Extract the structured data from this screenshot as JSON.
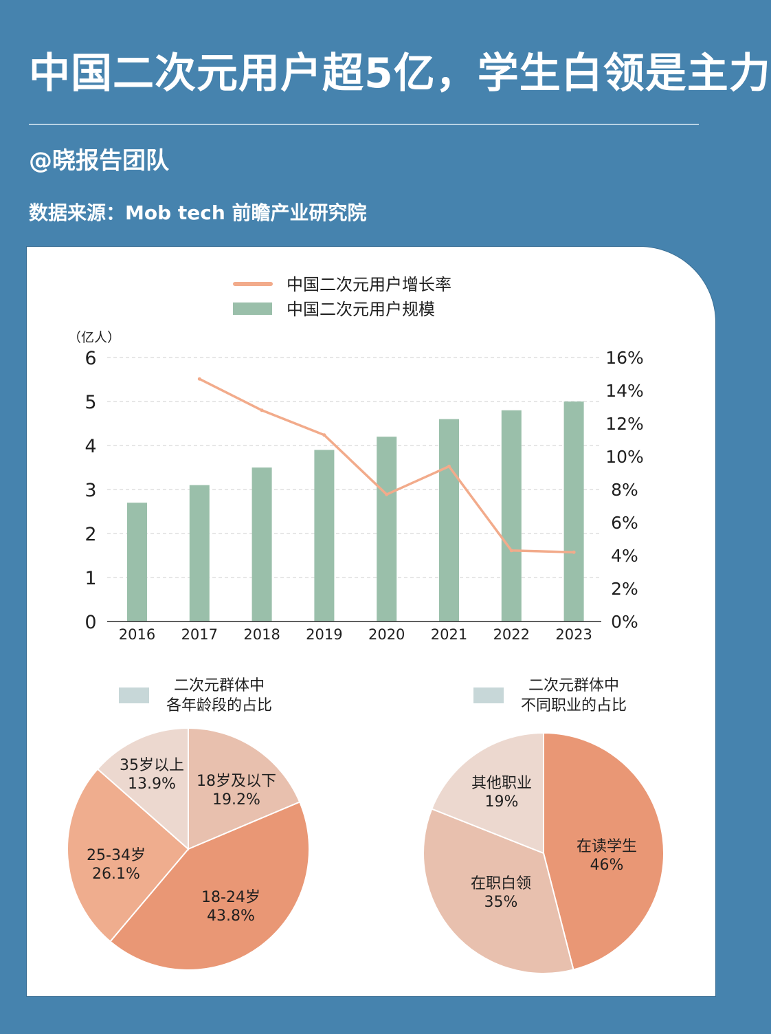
{
  "header": {
    "title": "中国二次元用户超5亿，学生白领是主力",
    "author": "@晓报告团队",
    "source": "数据来源：Mob tech 前瞻产业研究院"
  },
  "colors": {
    "background": "#4683ae",
    "bar": "#9abfaa",
    "line": "#f2ab8b",
    "pie_dark": "#e99775",
    "pie_mid": "#efad8e",
    "pie_light": "#e8c0ae",
    "pie_lightest": "#ecd8cf",
    "legend_swatch": "#c7d7d8"
  },
  "chart_data": [
    {
      "type": "bar",
      "categories": [
        "2016",
        "2017",
        "2018",
        "2019",
        "2020",
        "2021",
        "2022",
        "2023"
      ],
      "y_unit": "（亿人）",
      "ylim": [
        0,
        6
      ],
      "y_ticks": [
        "0",
        "1",
        "2",
        "3",
        "4",
        "5",
        "6"
      ],
      "y2lim": [
        0,
        16
      ],
      "y2_ticks": [
        "0%",
        "2%",
        "4%",
        "6%",
        "8%",
        "10%",
        "12%",
        "14%",
        "16%"
      ],
      "grid": true,
      "legend_position": "top",
      "series": [
        {
          "name": "中国二次元用户增长率",
          "type": "line",
          "axis": "right",
          "x": [
            "2017",
            "2018",
            "2019",
            "2020",
            "2021",
            "2022",
            "2023"
          ],
          "values": [
            14.7,
            12.8,
            11.3,
            7.7,
            9.4,
            4.3,
            4.2
          ]
        },
        {
          "name": "中国二次元用户规模",
          "type": "bar",
          "axis": "left",
          "values": [
            2.7,
            3.1,
            3.5,
            3.9,
            4.2,
            4.6,
            4.8,
            5.0
          ]
        }
      ]
    },
    {
      "type": "pie",
      "legend": "二次元群体中各年龄段的占比",
      "legend_lines": [
        "二次元群体中",
        "各年龄段的占比"
      ],
      "slices": [
        {
          "label": "18岁及以下",
          "value_label": "19.2%",
          "value": 19.2
        },
        {
          "label": "18-24岁",
          "value_label": "43.8%",
          "value": 43.8
        },
        {
          "label": "25-34岁",
          "value_label": "26.1%",
          "value": 26.1
        },
        {
          "label": "35岁以上",
          "value_label": "13.9%",
          "value": 13.9
        }
      ]
    },
    {
      "type": "pie",
      "legend": "二次元群体中不同职业的占比",
      "legend_lines": [
        "二次元群体中",
        "不同职业的占比"
      ],
      "slices": [
        {
          "label": "在读学生",
          "value_label": "46%",
          "value": 46
        },
        {
          "label": "在职白领",
          "value_label": "35%",
          "value": 35
        },
        {
          "label": "其他职业",
          "value_label": "19%",
          "value": 19
        }
      ]
    }
  ]
}
